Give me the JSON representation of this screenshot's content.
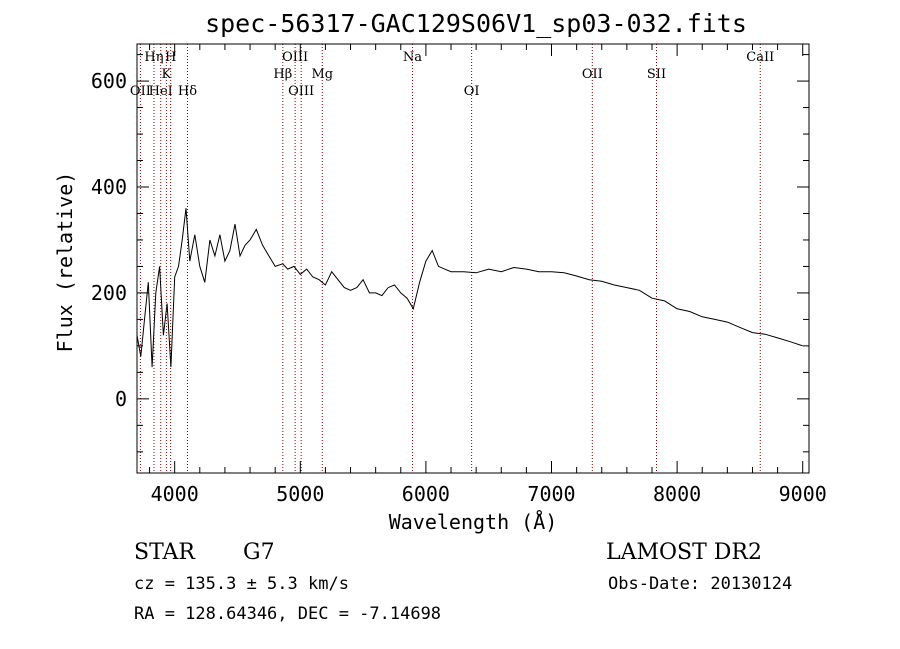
{
  "chart_data": {
    "type": "line",
    "title": "spec-56317-GAC129S06V1_sp03-032.fits",
    "xlabel": "Wavelength (Å)",
    "ylabel": "Flux (relative)",
    "xlim": [
      3700,
      9050
    ],
    "ylim": [
      -140,
      670
    ],
    "xticks": [
      4000,
      5000,
      6000,
      7000,
      8000,
      9000
    ],
    "yticks": [
      0,
      200,
      400,
      600
    ],
    "grid": false,
    "series": [
      {
        "x": [
          3700,
          3730,
          3760,
          3790,
          3820,
          3850,
          3880,
          3910,
          3940,
          3970,
          4000,
          4030,
          4060,
          4090,
          4120,
          4160,
          4200,
          4240,
          4280,
          4320,
          4360,
          4400,
          4440,
          4480,
          4520,
          4560,
          4600,
          4650,
          4700,
          4750,
          4800,
          4860,
          4900,
          4950,
          5000,
          5050,
          5100,
          5150,
          5200,
          5250,
          5300,
          5350,
          5400,
          5450,
          5500,
          5550,
          5600,
          5650,
          5700,
          5750,
          5800,
          5850,
          5900,
          5950,
          6000,
          6050,
          6100,
          6150,
          6200,
          6300,
          6400,
          6500,
          6600,
          6700,
          6800,
          6900,
          7000,
          7100,
          7200,
          7300,
          7400,
          7500,
          7600,
          7700,
          7800,
          7900,
          8000,
          8100,
          8200,
          8300,
          8400,
          8500,
          8600,
          8700,
          8800,
          8900,
          9000
        ],
        "y": [
          120,
          80,
          150,
          220,
          60,
          200,
          250,
          120,
          180,
          60,
          230,
          250,
          300,
          360,
          260,
          310,
          250,
          220,
          300,
          270,
          310,
          260,
          280,
          330,
          270,
          290,
          300,
          320,
          290,
          270,
          250,
          255,
          245,
          250,
          235,
          245,
          230,
          225,
          215,
          240,
          225,
          210,
          205,
          210,
          225,
          200,
          200,
          195,
          210,
          215,
          200,
          190,
          170,
          220,
          260,
          280,
          250,
          245,
          240,
          240,
          238,
          245,
          240,
          248,
          245,
          240,
          240,
          238,
          232,
          225,
          222,
          215,
          210,
          205,
          190,
          185,
          170,
          165,
          155,
          150,
          145,
          135,
          125,
          122,
          115,
          108,
          100
        ]
      }
    ],
    "lines": [
      {
        "label": "OII",
        "x": 3727,
        "row": 2
      },
      {
        "label": "Hη",
        "x": 3835,
        "row": 0
      },
      {
        "label": "HeI",
        "x": 3889,
        "row": 2
      },
      {
        "label": "K",
        "x": 3934,
        "row": 1
      },
      {
        "label": "H",
        "x": 3968,
        "row": 0
      },
      {
        "label": "Hδ",
        "x": 4102,
        "row": 2
      },
      {
        "label": "Hβ",
        "x": 4861,
        "row": 1
      },
      {
        "label": "OIII",
        "x": 4959,
        "row": 0
      },
      {
        "label": "OIII",
        "x": 5007,
        "row": 2
      },
      {
        "label": "Mg",
        "x": 5175,
        "row": 1
      },
      {
        "label": "Na",
        "x": 5893,
        "row": 0
      },
      {
        "label": "OI",
        "x": 6364,
        "row": 2
      },
      {
        "label": "OII",
        "x": 7325,
        "row": 1
      },
      {
        "label": "SII",
        "x": 7836,
        "row": 1
      },
      {
        "label": "CaII",
        "x": 8662,
        "row": 0
      }
    ]
  },
  "info": {
    "object_class": "STAR",
    "subclass": "G7",
    "redshift": "cz = 135.3 ± 5.3 km/s",
    "coords": "RA = 128.64346, DEC =  -7.14698",
    "survey": "LAMOST DR2",
    "obs_date": "Obs-Date: 20130124"
  },
  "colors": {
    "spectrum": "#000000",
    "line_marker": "#8b0000",
    "axis": "#000000",
    "background": "#ffffff"
  }
}
